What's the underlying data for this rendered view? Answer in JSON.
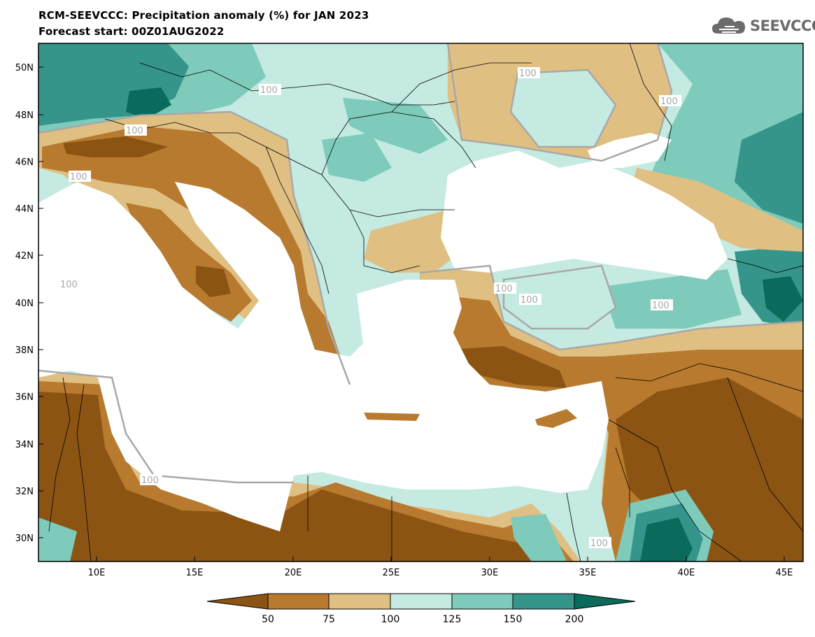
{
  "header": {
    "title": "RCM-SEEVCCC: Precipitation anomaly (%) for JAN 2023",
    "subtitle": "Forecast start: 00Z01AUG2022"
  },
  "logo": {
    "text": "SEEVCCC",
    "icon": "cloud-icon"
  },
  "axes": {
    "lat_labels": [
      "50N",
      "48N",
      "46N",
      "44N",
      "42N",
      "40N",
      "38N",
      "36N",
      "34N",
      "32N",
      "30N"
    ],
    "lon_labels": [
      "10E",
      "15E",
      "20E",
      "25E",
      "30E",
      "35E",
      "40E",
      "45E"
    ]
  },
  "contour_labels": [
    "100",
    "100",
    "100",
    "100",
    "100",
    "100",
    "100",
    "100",
    "100",
    "100",
    "100"
  ],
  "colorbar": {
    "tick_labels": [
      "50",
      "75",
      "100",
      "125",
      "150",
      "200"
    ],
    "colors": [
      "#8c5413",
      "#b77a2e",
      "#dfc082",
      "#c4eae2",
      "#7ecbbb",
      "#35958a",
      "#0a6a5b"
    ]
  },
  "colors": {
    "sea": "#ffffff",
    "dry_strong": "#8c5413",
    "dry": "#b77a2e",
    "dry_light": "#dfc082",
    "wet_light": "#c4eae2",
    "wet": "#7ecbbb",
    "wet_strong": "#35958a",
    "wet_extreme": "#0a6a5b"
  }
}
